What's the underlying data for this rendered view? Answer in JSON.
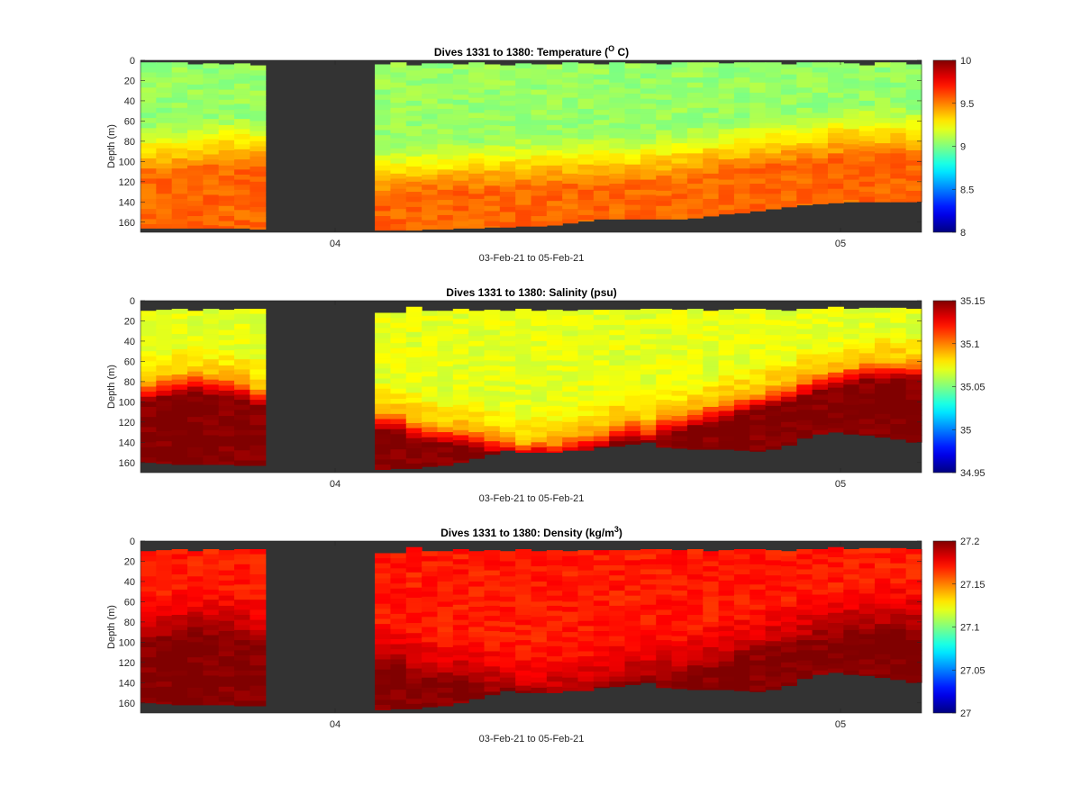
{
  "figure": {
    "background": "#ffffff",
    "land_color": "#333333"
  },
  "chart_data": [
    {
      "type": "heatmap",
      "variable": "temperature",
      "title": "Dives 1331 to 1380: Temperature (",
      "title_sup": "O",
      "title_end": " C)",
      "xlabel": "03-Feb-21 to 05-Feb-21",
      "ylabel": "Depth (m)",
      "x_ticks": [
        "04",
        "05"
      ],
      "y_ticks": [
        "0",
        "20",
        "40",
        "60",
        "80",
        "100",
        "120",
        "140",
        "160"
      ],
      "ylim": [
        0,
        170
      ],
      "colorbar": {
        "clim": [
          8,
          10
        ],
        "ticks": [
          "8",
          "8.5",
          "9",
          "9.5",
          "10"
        ],
        "colormap": "jet"
      },
      "profiles": {
        "n": 50,
        "surface_depth_m": [
          2,
          2,
          2,
          4,
          3,
          4,
          3,
          5,
          null,
          null,
          null,
          null,
          null,
          null,
          null,
          4,
          2,
          5,
          3,
          3,
          4,
          2,
          4,
          5,
          3,
          4,
          4,
          2,
          3,
          4,
          2,
          3,
          3,
          4,
          2,
          2,
          2,
          3,
          2,
          2,
          2,
          4,
          2,
          2,
          2,
          3,
          5,
          2,
          2,
          4
        ],
        "bottom_depth_m": [
          166,
          166,
          166,
          166,
          166,
          166,
          166,
          167,
          null,
          null,
          null,
          null,
          null,
          null,
          null,
          168,
          168,
          168,
          167,
          167,
          166,
          166,
          165,
          165,
          164,
          164,
          163,
          161,
          159,
          157,
          157,
          157,
          157,
          157,
          157,
          156,
          154,
          152,
          151,
          149,
          147,
          145,
          143,
          142,
          141,
          140,
          140,
          140,
          140,
          140
        ],
        "surface_value": 9.05,
        "gradient_value": 9.35,
        "deep_value": 9.55,
        "interface_depth_m": [
          82,
          82,
          82,
          80,
          78,
          76,
          76,
          76,
          null,
          null,
          null,
          null,
          null,
          null,
          null,
          105,
          105,
          102,
          100,
          100,
          98,
          98,
          96,
          96,
          96,
          95,
          95,
          95,
          95,
          95,
          95,
          94,
          92,
          90,
          88,
          86,
          84,
          82,
          80,
          78,
          76,
          74,
          72,
          70,
          68,
          66,
          66,
          66,
          66,
          66
        ]
      }
    },
    {
      "type": "heatmap",
      "variable": "salinity",
      "title": "Dives 1331 to 1380: Salinity (psu)",
      "xlabel": "03-Feb-21 to 05-Feb-21",
      "ylabel": "Depth (m)",
      "x_ticks": [
        "04",
        "05"
      ],
      "y_ticks": [
        "0",
        "20",
        "40",
        "60",
        "80",
        "100",
        "120",
        "140",
        "160"
      ],
      "ylim": [
        0,
        170
      ],
      "colorbar": {
        "clim": [
          34.95,
          35.15
        ],
        "ticks": [
          "34.95",
          "35",
          "35.05",
          "35.1",
          "35.15"
        ],
        "colormap": "jet"
      },
      "profiles": {
        "n": 50,
        "surface_depth_m": [
          10,
          9,
          8,
          10,
          8,
          9,
          8,
          8,
          null,
          null,
          null,
          null,
          null,
          null,
          null,
          12,
          12,
          6,
          10,
          10,
          8,
          10,
          9,
          10,
          8,
          10,
          9,
          10,
          9,
          9,
          9,
          9,
          8,
          8,
          9,
          8,
          10,
          9,
          8,
          8,
          9,
          10,
          8,
          8,
          6,
          8,
          7,
          7,
          7,
          8
        ],
        "bottom_depth_m": [
          160,
          161,
          162,
          162,
          162,
          162,
          163,
          163,
          null,
          null,
          null,
          null,
          null,
          null,
          null,
          167,
          166,
          166,
          164,
          163,
          160,
          156,
          152,
          148,
          150,
          150,
          150,
          148,
          148,
          145,
          144,
          142,
          140,
          145,
          146,
          147,
          147,
          147,
          148,
          149,
          147,
          143,
          136,
          132,
          130,
          132,
          133,
          135,
          137,
          140
        ],
        "surface_value": 35.07,
        "gradient_value": 35.09,
        "deep_value": 35.15,
        "interface_depth_m": [
          70,
          66,
          64,
          62,
          64,
          66,
          68,
          76,
          null,
          null,
          null,
          null,
          null,
          null,
          null,
          100,
          102,
          108,
          112,
          114,
          116,
          118,
          122,
          126,
          130,
          126,
          128,
          124,
          120,
          118,
          110,
          108,
          112,
          104,
          100,
          96,
          92,
          88,
          84,
          80,
          76,
          72,
          66,
          62,
          58,
          54,
          50,
          50,
          50,
          50
        ]
      }
    },
    {
      "type": "heatmap",
      "variable": "density",
      "title": "Dives 1331 to 1380: Density (kg/m",
      "title_sup": "3",
      "title_end": ")",
      "xlabel": "03-Feb-21 to 05-Feb-21",
      "ylabel": "Depth (m)",
      "x_ticks": [
        "04",
        "05"
      ],
      "y_ticks": [
        "0",
        "20",
        "40",
        "60",
        "80",
        "100",
        "120",
        "140",
        "160"
      ],
      "ylim": [
        0,
        170
      ],
      "colorbar": {
        "clim": [
          27.0,
          27.2
        ],
        "ticks": [
          "27",
          "27.05",
          "27.1",
          "27.15",
          "27.2"
        ],
        "colormap": "jet"
      },
      "profiles": {
        "n": 50,
        "surface_depth_m": [
          10,
          9,
          8,
          10,
          8,
          9,
          8,
          8,
          null,
          null,
          null,
          null,
          null,
          null,
          null,
          12,
          12,
          6,
          10,
          10,
          8,
          10,
          9,
          10,
          8,
          10,
          9,
          10,
          9,
          9,
          9,
          9,
          8,
          8,
          9,
          8,
          10,
          9,
          8,
          8,
          9,
          10,
          8,
          8,
          6,
          8,
          7,
          7,
          7,
          8
        ],
        "bottom_depth_m": [
          160,
          161,
          162,
          162,
          162,
          162,
          163,
          163,
          null,
          null,
          null,
          null,
          null,
          null,
          null,
          167,
          166,
          166,
          164,
          163,
          160,
          156,
          152,
          148,
          150,
          150,
          150,
          148,
          148,
          145,
          144,
          142,
          140,
          145,
          146,
          147,
          147,
          147,
          148,
          149,
          147,
          143,
          136,
          132,
          130,
          132,
          133,
          135,
          137,
          140
        ],
        "surface_value": 27.17,
        "gradient_value": 27.185,
        "deep_value": 27.2,
        "interface_depth_m": [
          72,
          70,
          68,
          66,
          66,
          68,
          70,
          76,
          null,
          null,
          null,
          null,
          null,
          null,
          null,
          100,
          102,
          108,
          112,
          114,
          116,
          118,
          122,
          126,
          130,
          130,
          130,
          128,
          126,
          122,
          118,
          114,
          112,
          110,
          108,
          104,
          100,
          96,
          92,
          88,
          84,
          80,
          76,
          72,
          68,
          64,
          62,
          62,
          62,
          62
        ]
      }
    }
  ]
}
